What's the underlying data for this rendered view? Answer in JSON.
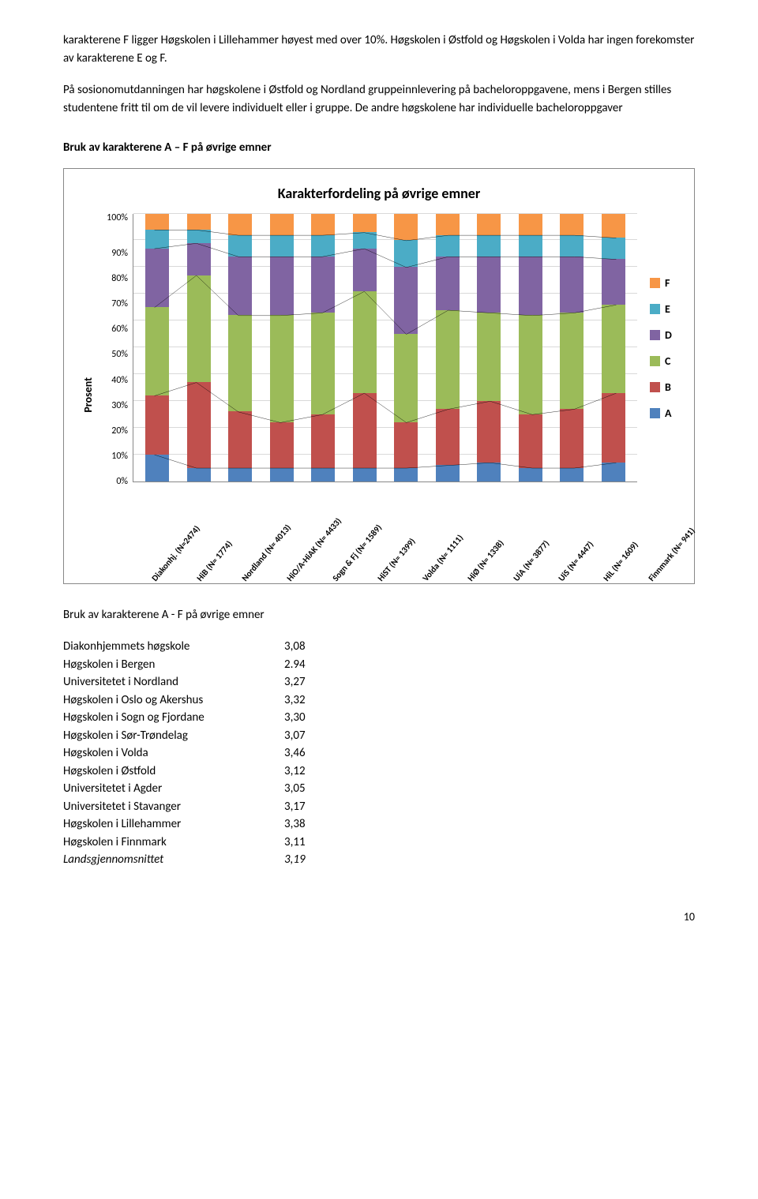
{
  "para1": "karakterene F ligger Høgskolen i Lillehammer høyest med over 10%. Høgskolen i Østfold og Høgskolen i Volda har ingen forekomster av karakterene E og F.",
  "para2": "På sosionomutdanningen har høgskolene i Østfold og Nordland gruppeinnlevering på bacheloroppgavene, mens i Bergen stilles studentene fritt til om de vil levere individuelt eller i gruppe. De andre høgskolene har individuelle bacheloroppgaver",
  "heading1": "Bruk av karakterene A – F på øvrige emner",
  "chart": {
    "title": "Karakterfordeling på øvrige emner",
    "y_label": "Prosent",
    "y_ticks": [
      "100%",
      "90%",
      "80%",
      "70%",
      "60%",
      "50%",
      "40%",
      "30%",
      "20%",
      "10%",
      "0%"
    ],
    "y_tick_vals": [
      100,
      90,
      80,
      70,
      60,
      50,
      40,
      30,
      20,
      10,
      0
    ],
    "colors": {
      "F": "#f79646",
      "E": "#4bacc6",
      "D": "#8064a2",
      "C": "#9bbb59",
      "B": "#c0504d",
      "A": "#4f81bd"
    },
    "line_color": "#000000",
    "legend": [
      {
        "label": "F",
        "key": "F"
      },
      {
        "label": "E",
        "key": "E"
      },
      {
        "label": "D",
        "key": "D"
      },
      {
        "label": "C",
        "key": "C"
      },
      {
        "label": "B",
        "key": "B"
      },
      {
        "label": "A",
        "key": "A"
      }
    ],
    "categories": [
      {
        "label": "Diakonhj. (N=2474)",
        "A": 10,
        "B": 22,
        "C": 33,
        "D": 22,
        "E": 7,
        "F": 6
      },
      {
        "label": "HiB (N= 1774)",
        "A": 5,
        "B": 32,
        "C": 40,
        "D": 12,
        "E": 5,
        "F": 6
      },
      {
        "label": "Nordland (N= 4013)",
        "A": 5,
        "B": 21,
        "C": 36,
        "D": 22,
        "E": 8,
        "F": 8
      },
      {
        "label": "HiO/A-HiAK (N= 4433)",
        "A": 5,
        "B": 17,
        "C": 40,
        "D": 22,
        "E": 8,
        "F": 8
      },
      {
        "label": "Sogn & Fj (N= 1589)",
        "A": 5,
        "B": 20,
        "C": 38,
        "D": 21,
        "E": 8,
        "F": 8
      },
      {
        "label": "HiST (N= 1399)",
        "A": 5,
        "B": 28,
        "C": 38,
        "D": 16,
        "E": 6,
        "F": 7
      },
      {
        "label": "Volda (N= 1111)",
        "A": 5,
        "B": 17,
        "C": 33,
        "D": 25,
        "E": 10,
        "F": 10
      },
      {
        "label": "HiØ (N= 1338)",
        "A": 6,
        "B": 21,
        "C": 37,
        "D": 20,
        "E": 8,
        "F": 8
      },
      {
        "label": "UiA (N= 3877)",
        "A": 7,
        "B": 23,
        "C": 33,
        "D": 21,
        "E": 8,
        "F": 8
      },
      {
        "label": "UiS (N= 4447)",
        "A": 5,
        "B": 20,
        "C": 37,
        "D": 22,
        "E": 8,
        "F": 8
      },
      {
        "label": "HiL (N= 1609)",
        "A": 5,
        "B": 22,
        "C": 36,
        "D": 21,
        "E": 8,
        "F": 8
      },
      {
        "label": "Finnmark (N= 941)",
        "A": 7,
        "B": 26,
        "C": 33,
        "D": 17,
        "E": 8,
        "F": 9
      }
    ]
  },
  "results_heading": "Bruk av karakterene A - F på øvrige emner",
  "results_rows": [
    {
      "label": "Diakonhjemmets høgskole",
      "val": "3,08"
    },
    {
      "label": "Høgskolen i Bergen",
      "val": "2.94"
    },
    {
      "label": "Universitetet i Nordland",
      "val": "3,27"
    },
    {
      "label": "Høgskolen i Oslo og Akershus",
      "val": "3,32"
    },
    {
      "label": "Høgskolen i Sogn og Fjordane",
      "val": "3,30"
    },
    {
      "label": "Høgskolen i Sør-Trøndelag",
      "val": "3,07"
    },
    {
      "label": "Høgskolen i Volda",
      "val": "3,46"
    },
    {
      "label": "Høgskolen i Østfold",
      "val": "3,12"
    },
    {
      "label": "Universitetet i Agder",
      "val": "3,05"
    },
    {
      "label": "Universitetet i Stavanger",
      "val": "3,17"
    },
    {
      "label": "Høgskolen i Lillehammer",
      "val": "3,38"
    },
    {
      "label": "Høgskolen i Finnmark",
      "val": "3,11"
    },
    {
      "label": "Landsgjennomsnittet",
      "val": "3,19",
      "italic": true
    }
  ],
  "page_number": "10"
}
